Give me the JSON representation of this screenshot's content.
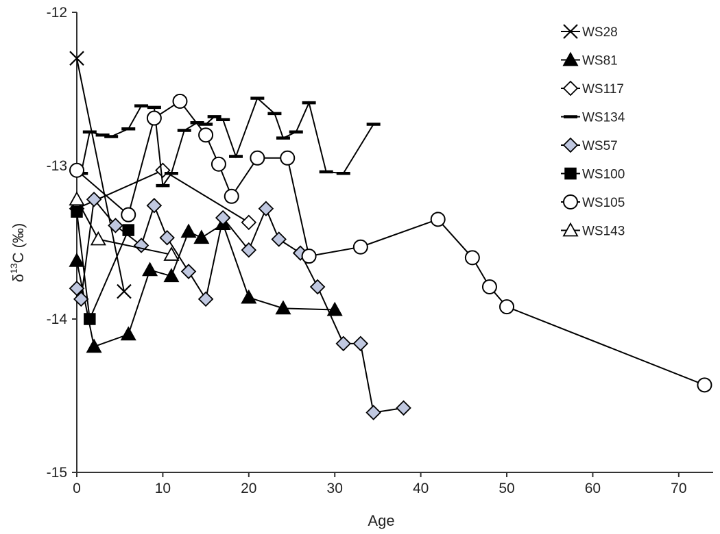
{
  "chart_data": {
    "type": "line",
    "xlabel": "Age",
    "ylabel": "δ13C (‰)",
    "xlim": [
      0,
      74
    ],
    "ylim": [
      -15,
      -12
    ],
    "xticks": [
      "0",
      "10",
      "20",
      "30",
      "40",
      "50",
      "60",
      "70"
    ],
    "yticks": [
      "-12",
      "-13",
      "-14",
      "-15"
    ],
    "grid": false,
    "legend_position": "top-right",
    "series": [
      {
        "name": "WS28",
        "marker": "x",
        "fill": "#000000",
        "x": [
          0,
          5.5
        ],
        "y": [
          -12.3,
          -13.82
        ]
      },
      {
        "name": "WS81",
        "marker": "triangle",
        "fill": "#000000",
        "x": [
          0,
          2,
          6,
          8.5,
          11,
          13,
          14.5,
          17,
          20,
          24,
          30
        ],
        "y": [
          -13.62,
          -14.18,
          -14.1,
          -13.68,
          -13.72,
          -13.43,
          -13.47,
          -13.38,
          -13.86,
          -13.93,
          -13.94
        ]
      },
      {
        "name": "WS117",
        "marker": "diamond",
        "fill": "#ffffff",
        "x": [
          0,
          10,
          20
        ],
        "y": [
          -13.28,
          -13.03,
          -13.37
        ]
      },
      {
        "name": "WS134",
        "marker": "dash",
        "fill": "#000000",
        "x": [
          0.5,
          1.5,
          3,
          4,
          6,
          7.5,
          9,
          10,
          11,
          12.5,
          14,
          15,
          16,
          17,
          18.5,
          21,
          23,
          24,
          25.5,
          27,
          29,
          31,
          34.5
        ],
        "y": [
          -13.05,
          -12.78,
          -12.8,
          -12.81,
          -12.76,
          -12.61,
          -12.62,
          -13.13,
          -13.05,
          -12.77,
          -12.72,
          -12.73,
          -12.68,
          -12.7,
          -12.94,
          -12.56,
          -12.66,
          -12.82,
          -12.78,
          -12.59,
          -13.04,
          -13.05,
          -12.73
        ]
      },
      {
        "name": "WS57",
        "marker": "diamond",
        "fill": "#c0c8e0",
        "x": [
          0,
          0.5,
          2,
          4.5,
          7.5,
          9,
          10.5,
          13,
          15,
          17,
          20,
          22,
          23.5,
          26,
          28,
          31,
          33,
          34.5,
          38
        ],
        "y": [
          -13.8,
          -13.87,
          -13.22,
          -13.39,
          -13.52,
          -13.26,
          -13.47,
          -13.69,
          -13.87,
          -13.34,
          -13.55,
          -13.28,
          -13.48,
          -13.57,
          -13.79,
          -14.16,
          -14.16,
          -14.61,
          -14.58
        ]
      },
      {
        "name": "WS100",
        "marker": "square",
        "fill": "#000000",
        "x": [
          0,
          1.5,
          6
        ],
        "y": [
          -13.3,
          -14.0,
          -13.42
        ]
      },
      {
        "name": "WS105",
        "marker": "circle",
        "fill": "#ffffff",
        "x": [
          0,
          6,
          9,
          12,
          15,
          16.5,
          18,
          21,
          24.5,
          27,
          33,
          42,
          46,
          48,
          50,
          73
        ],
        "y": [
          -13.03,
          -13.32,
          -12.69,
          -12.58,
          -12.8,
          -12.99,
          -13.2,
          -12.95,
          -12.95,
          -13.59,
          -13.53,
          -13.35,
          -13.6,
          -13.79,
          -13.92,
          -14.43
        ]
      },
      {
        "name": "WS143",
        "marker": "triangle",
        "fill": "#ffffff",
        "x": [
          0,
          2.5,
          11
        ],
        "y": [
          -13.22,
          -13.48,
          -13.58
        ]
      }
    ]
  }
}
